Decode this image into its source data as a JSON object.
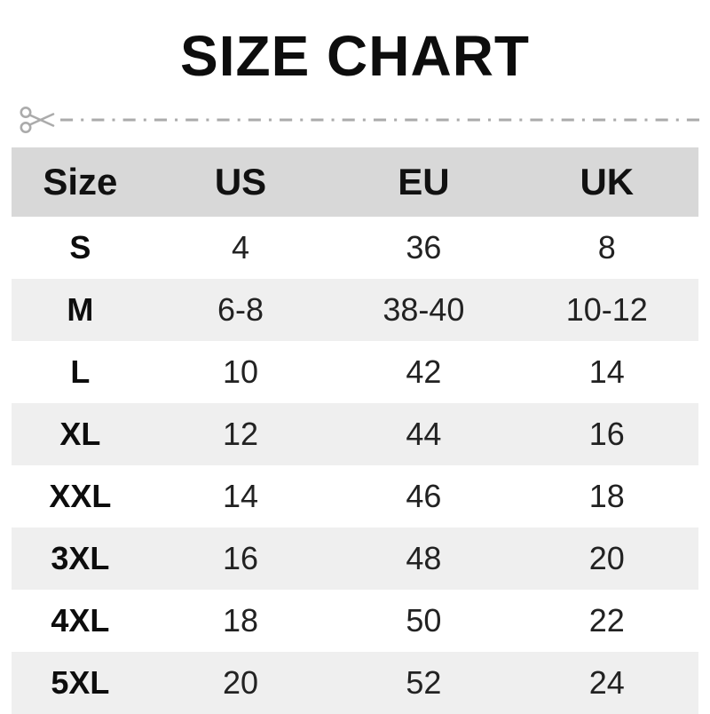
{
  "title": "SIZE CHART",
  "icons": {
    "scissors": "scissors-icon"
  },
  "colors": {
    "header_row_bg": "#d8d8d8",
    "stripe_row_bg": "#efefef",
    "title_text": "#0d0d0d",
    "cut_line": "#ababab",
    "cell_text": "#222222"
  },
  "chart_data": {
    "type": "table",
    "title": "SIZE CHART",
    "columns": [
      "Size",
      "US",
      "EU",
      "UK"
    ],
    "rows": [
      [
        "S",
        "4",
        "36",
        "8"
      ],
      [
        "M",
        "6-8",
        "38-40",
        "10-12"
      ],
      [
        "L",
        "10",
        "42",
        "14"
      ],
      [
        "XL",
        "12",
        "44",
        "16"
      ],
      [
        "XXL",
        "14",
        "46",
        "18"
      ],
      [
        "3XL",
        "16",
        "48",
        "20"
      ],
      [
        "4XL",
        "18",
        "50",
        "22"
      ],
      [
        "5XL",
        "20",
        "52",
        "24"
      ]
    ]
  }
}
